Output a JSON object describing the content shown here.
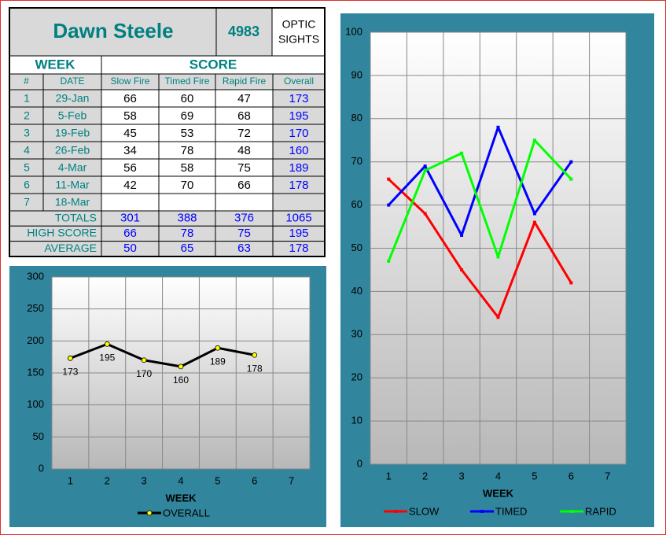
{
  "table": {
    "name": "Dawn Steele",
    "id": "4983",
    "label_lines": [
      "OPTIC",
      "SIGHTS"
    ],
    "groups": [
      "WEEK",
      "SCORE"
    ],
    "columns": [
      "#",
      "DATE",
      "Slow Fire",
      "Timed Fire",
      "Rapid Fire",
      "Overall"
    ],
    "rows": [
      [
        1,
        "29-Jan",
        66,
        60,
        47,
        173
      ],
      [
        2,
        "5-Feb",
        58,
        69,
        68,
        195
      ],
      [
        3,
        "19-Feb",
        45,
        53,
        72,
        170
      ],
      [
        4,
        "26-Feb",
        34,
        78,
        48,
        160
      ],
      [
        5,
        "4-Mar",
        56,
        58,
        75,
        189
      ],
      [
        6,
        "11-Mar",
        42,
        70,
        66,
        178
      ],
      [
        7,
        "18-Mar"
      ]
    ],
    "summary": [
      [
        "TOTALS",
        301,
        388,
        376,
        1065
      ],
      [
        "HIGH SCORE",
        66,
        78,
        75,
        195
      ],
      [
        "AVERAGE",
        50,
        65,
        63,
        178
      ]
    ]
  },
  "chart_data": [
    {
      "type": "line",
      "categories": [
        1,
        2,
        3,
        4,
        5,
        6,
        7
      ],
      "xlabel": "WEEK",
      "ylim": [
        0,
        300
      ],
      "yticks": [
        0,
        50,
        100,
        150,
        200,
        250,
        300
      ],
      "grid": true,
      "data_labels": true,
      "marker": "circle",
      "series": [
        {
          "name": "OVERALL",
          "color": "#000000",
          "marker_color": "#ffff00",
          "values": [
            173,
            195,
            170,
            160,
            189,
            178,
            null
          ]
        }
      ]
    },
    {
      "type": "line",
      "categories": [
        1,
        2,
        3,
        4,
        5,
        6,
        7
      ],
      "xlabel": "WEEK",
      "ylim": [
        0,
        100
      ],
      "yticks": [
        0,
        10,
        20,
        30,
        40,
        50,
        60,
        70,
        80,
        90,
        100
      ],
      "grid": true,
      "data_labels": false,
      "marker": "square",
      "series": [
        {
          "name": "SLOW",
          "color": "#ff0000",
          "marker_color": "#ff0000",
          "values": [
            66,
            58,
            45,
            34,
            56,
            42,
            null
          ]
        },
        {
          "name": "TIMED",
          "color": "#0000ff",
          "marker_color": "#0000ff",
          "values": [
            60,
            69,
            53,
            78,
            58,
            70,
            null
          ]
        },
        {
          "name": "RAPID",
          "color": "#00ff00",
          "marker_color": "#00ff00",
          "values": [
            47,
            68,
            72,
            48,
            75,
            66,
            null
          ]
        }
      ]
    }
  ]
}
